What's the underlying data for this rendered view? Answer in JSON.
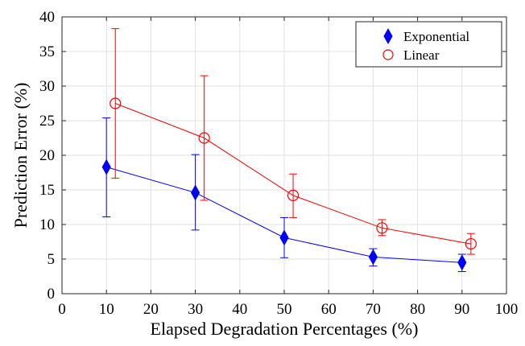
{
  "chart_data": {
    "type": "line",
    "xlabel": "Elapsed Degradation Percentages (%)",
    "ylabel": "Prediction Error (%)",
    "xlim": [
      0,
      100
    ],
    "ylim": [
      0,
      40
    ],
    "xticks": [
      "0",
      "10",
      "20",
      "30",
      "40",
      "50",
      "60",
      "70",
      "80",
      "90",
      "100"
    ],
    "yticks": [
      "0",
      "5",
      "10",
      "15",
      "20",
      "25",
      "30",
      "35",
      "40"
    ],
    "grid": true,
    "legend_position": "top-right",
    "series": [
      {
        "name": "Exponential",
        "color": "#0000ff",
        "marker": "filled-diamond",
        "x": [
          10,
          30,
          50,
          70,
          90
        ],
        "y": [
          18.3,
          14.6,
          8.1,
          5.3,
          4.5
        ],
        "err_low": [
          11.1,
          9.2,
          5.2,
          4.0,
          3.2
        ],
        "err_high": [
          25.4,
          20.1,
          11.0,
          6.5,
          5.7
        ]
      },
      {
        "name": "Linear",
        "color": "#ff0000",
        "marker": "open-circle",
        "x": [
          12,
          32,
          52,
          72,
          92
        ],
        "y": [
          27.5,
          22.5,
          14.2,
          9.5,
          7.2
        ],
        "err_low": [
          16.7,
          13.5,
          11.0,
          8.4,
          5.7
        ],
        "err_high": [
          38.3,
          31.5,
          17.3,
          10.7,
          8.7
        ]
      }
    ]
  }
}
